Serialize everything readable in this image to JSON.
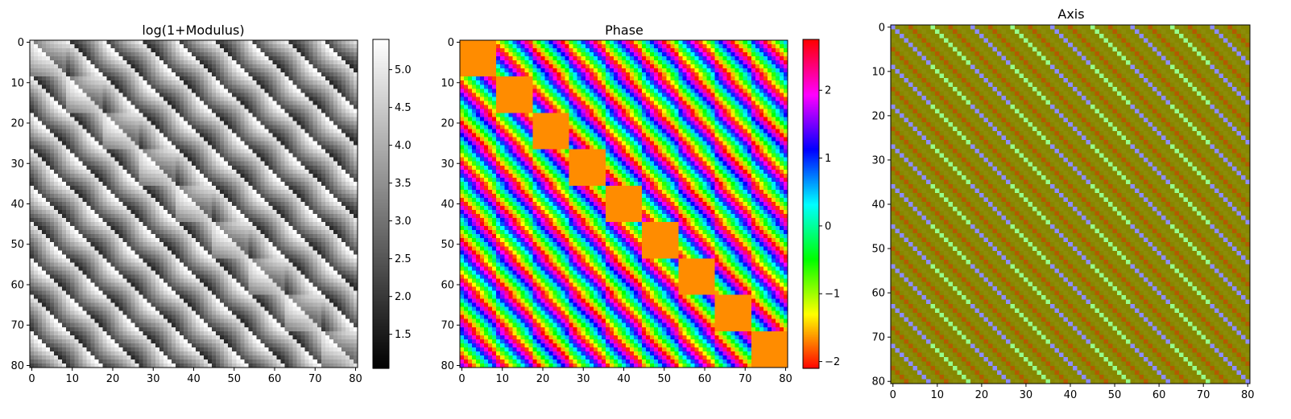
{
  "chart_data": [
    {
      "type": "heatmap",
      "title": "log(1+Modulus)",
      "rows": 81,
      "cols": 81,
      "xticks": [
        0,
        10,
        20,
        30,
        40,
        50,
        60,
        70,
        80
      ],
      "yticks": [
        0,
        10,
        20,
        30,
        40,
        50,
        60,
        70,
        80
      ],
      "colormap": "gray",
      "colorbar": {
        "vmin": 1.05,
        "vmax": 5.4,
        "ticks": [
          1.5,
          2.0,
          2.5,
          3.0,
          3.5,
          4.0,
          4.5,
          5.0
        ],
        "tick_labels": [
          "1.5",
          "2.0",
          "2.5",
          "3.0",
          "3.5",
          "4.0",
          "4.5",
          "5.0"
        ]
      }
    },
    {
      "type": "heatmap",
      "title": "Phase",
      "rows": 81,
      "cols": 81,
      "xticks": [
        0,
        10,
        20,
        30,
        40,
        50,
        60,
        70,
        80
      ],
      "yticks": [
        0,
        10,
        20,
        30,
        40,
        50,
        60,
        70,
        80
      ],
      "colormap": "hsv",
      "colorbar": {
        "vmin": -2.1,
        "vmax": 2.75,
        "ticks": [
          -2,
          -1,
          0,
          1,
          2
        ],
        "tick_labels": [
          "−2",
          "−1",
          "0",
          "1",
          "2"
        ]
      }
    },
    {
      "type": "heatmap",
      "title": "Axis",
      "rows": 81,
      "cols": 81,
      "xticks": [
        0,
        10,
        20,
        30,
        40,
        50,
        60,
        70,
        80
      ],
      "yticks": [
        0,
        10,
        20,
        30,
        40,
        50,
        60,
        70,
        80
      ],
      "colors": {
        "base": "#878700",
        "light": "#8c8c0a",
        "blue": "#8c8cff",
        "green": "#96ff8c",
        "red": "#b45a00"
      }
    }
  ]
}
